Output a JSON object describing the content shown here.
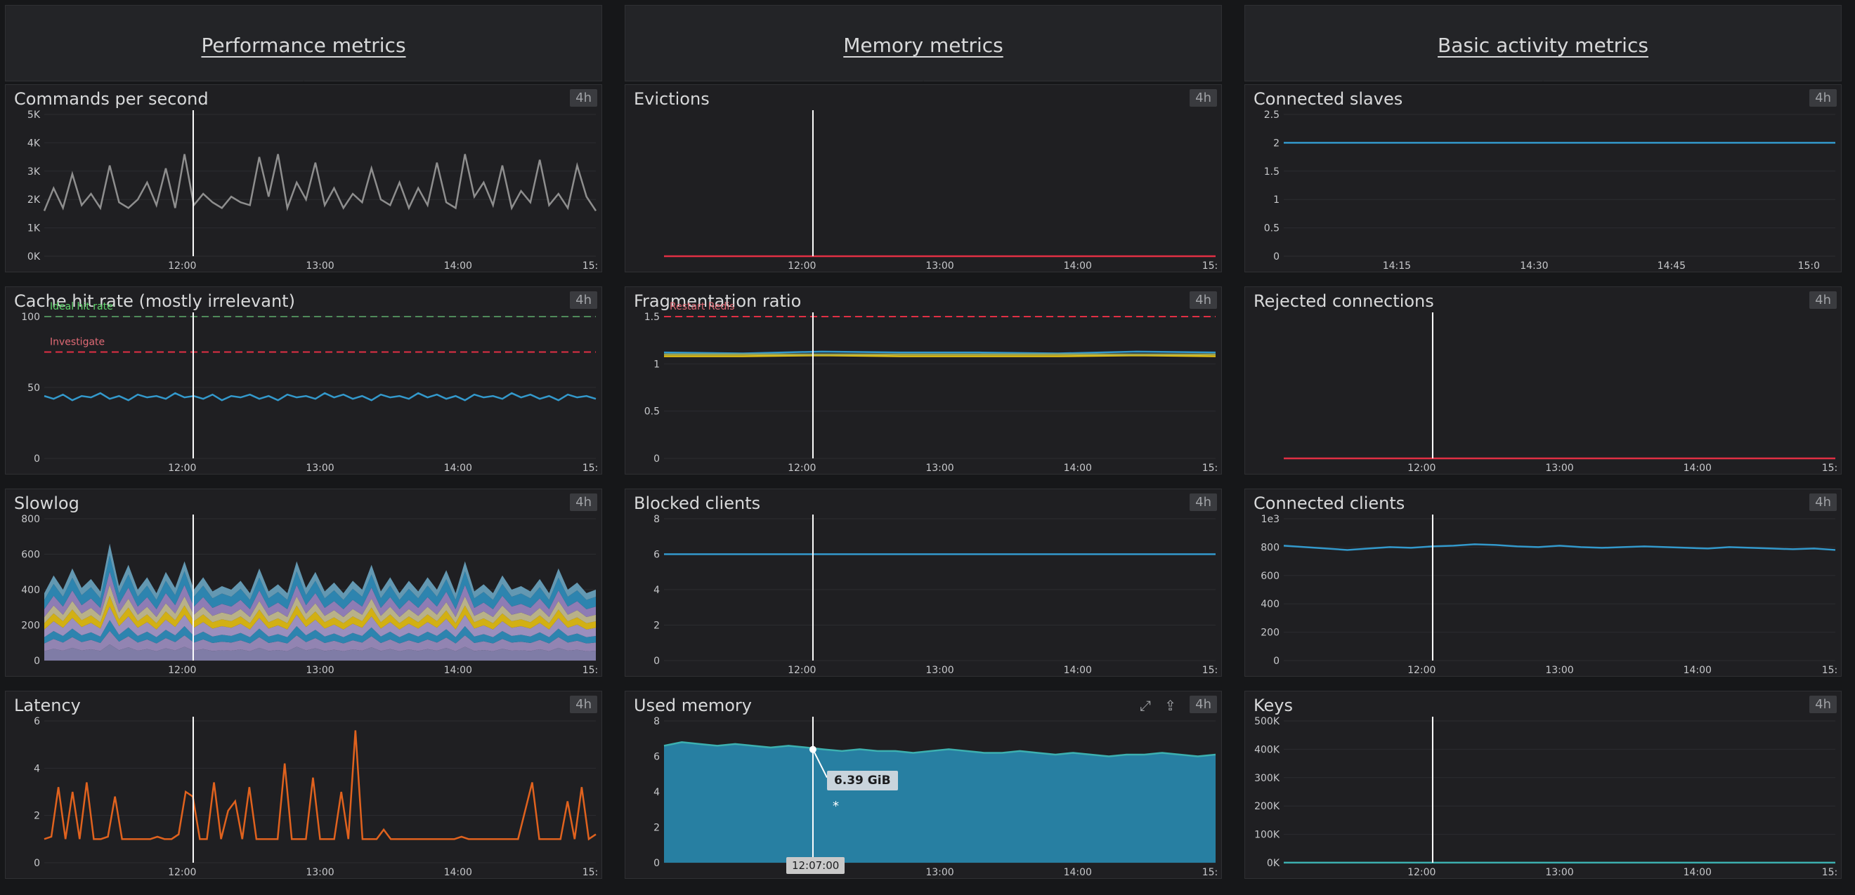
{
  "sections": [
    {
      "title": "Performance metrics"
    },
    {
      "title": "Memory metrics"
    },
    {
      "title": "Basic activity metrics"
    }
  ],
  "colors": {
    "gray_line": "#8e8e8e",
    "blue": "#3399cc",
    "red": "#e02f44",
    "orange": "#e0621e",
    "teal": "#277fa2",
    "purple": "#6c5ea6",
    "green_dash": "#4f8a5a",
    "yellow": "#e5c012"
  },
  "tooltip": {
    "value": "6.39 GiB",
    "marker": "*",
    "time": "12:07:00"
  },
  "panels": [
    {
      "title": "Commands per second",
      "badge": "4h",
      "col": 0,
      "row": 0,
      "chart_data": {
        "type": "line",
        "title": "Commands per second",
        "y_ticks": [
          "0K",
          "1K",
          "2K",
          "3K",
          "4K",
          "5K"
        ],
        "x_ticks": [
          "12:00",
          "13:00",
          "14:00",
          "15:"
        ],
        "series": [
          {
            "color": "gray_line",
            "values": [
              1600,
              2400,
              1700,
              2900,
              1800,
              2200,
              1700,
              3200,
              1900,
              1700,
              2000,
              2600,
              1800,
              3100,
              1700,
              3600,
              1800,
              2200,
              1900,
              1700,
              2100,
              1900,
              1800,
              3500,
              2100,
              3600,
              1700,
              2600,
              2000,
              3300,
              1800,
              2400,
              1700,
              2200,
              1900,
              3100,
              2000,
              1800,
              2600,
              1700,
              2400,
              1800,
              3300,
              1900,
              1700,
              3600,
              2100,
              2600,
              1800,
              3200,
              1700,
              2300,
              1900,
              3400,
              1800,
              2200,
              1700,
              3200,
              2100,
              1600
            ]
          }
        ]
      }
    },
    {
      "title": "Cache hit rate (mostly irrelevant)",
      "badge": "4h",
      "col": 0,
      "row": 1,
      "chart_data": {
        "type": "line",
        "title": "Cache hit rate (mostly irrelevant)",
        "y_ticks": [
          "0",
          "50",
          "100"
        ],
        "x_ticks": [
          "12:00",
          "13:00",
          "14:00",
          "15:"
        ],
        "annotations": [
          {
            "label": "Ideal hit rate",
            "y": 100,
            "color": "green_dash"
          },
          {
            "label": "Investigate",
            "y": 75,
            "color": "red"
          }
        ],
        "series": [
          {
            "color": "blue",
            "values": [
              44,
              42,
              45,
              41,
              44,
              43,
              46,
              42,
              44,
              41,
              45,
              43,
              44,
              42,
              46,
              43,
              44,
              42,
              45,
              41,
              44,
              43,
              45,
              42,
              44,
              41,
              45,
              43,
              44,
              42,
              46,
              43,
              45,
              42,
              44,
              41,
              45,
              43,
              44,
              42,
              46,
              43,
              45,
              42,
              44,
              41,
              45,
              43,
              44,
              42,
              46,
              43,
              45,
              42,
              44,
              41,
              45,
              43,
              44,
              42
            ]
          }
        ]
      }
    },
    {
      "title": "Slowlog",
      "badge": "4h",
      "col": 0,
      "row": 2,
      "chart_data": {
        "type": "area",
        "title": "Slowlog",
        "y_ticks": [
          "0",
          "200",
          "400",
          "600",
          "800"
        ],
        "x_ticks": [
          "12:00",
          "13:00",
          "14:00",
          "15:"
        ],
        "stacked": true,
        "series": [
          {
            "color": "#8a86b5",
            "values": [
              60,
              60,
              60,
              60
            ]
          },
          {
            "color": "#9e8fc2",
            "values": [
              50,
              50,
              50,
              50
            ]
          },
          {
            "color": "#2f8fbf",
            "values": [
              40,
              40,
              40,
              40
            ]
          },
          {
            "color": "#a99bcf",
            "values": [
              50,
              50,
              50,
              50
            ]
          },
          {
            "color": "#e5c012",
            "values": [
              40,
              40,
              40,
              40
            ]
          },
          {
            "color": "#c9c195",
            "values": [
              40,
              40,
              40,
              40
            ]
          },
          {
            "color": "#9a86c4",
            "values": [
              50,
              50,
              50,
              50
            ]
          },
          {
            "color": "#2f8fbf",
            "values": [
              60,
              60,
              60,
              60
            ]
          },
          {
            "color": "#6aa5c2",
            "values": [
              0,
              0,
              0,
              0
            ]
          }
        ],
        "top_values": [
          380,
          480,
          400,
          520,
          410,
          460,
          390,
          660,
          420,
          540,
          400,
          470,
          380,
          500,
          410,
          560,
          400,
          470,
          390,
          420,
          400,
          450,
          380,
          520,
          390,
          430,
          380,
          560,
          410,
          500,
          390,
          440,
          380,
          450,
          400,
          540,
          390,
          470,
          380,
          450,
          390,
          470,
          400,
          510,
          380,
          560,
          390,
          430,
          380,
          480,
          400,
          420,
          390,
          460,
          380,
          520,
          400,
          440,
          380,
          400
        ]
      }
    },
    {
      "title": "Latency",
      "badge": "4h",
      "col": 0,
      "row": 3,
      "chart_data": {
        "type": "line",
        "title": "Latency",
        "y_ticks": [
          "0",
          "2",
          "4",
          "6"
        ],
        "x_ticks": [
          "12:00",
          "13:00",
          "14:00",
          "15:"
        ],
        "series": [
          {
            "color": "orange",
            "values": [
              1,
              1.1,
              3.2,
              1,
              3.0,
              1,
              3.4,
              1,
              1,
              1.1,
              2.8,
              1,
              1,
              1,
              1,
              1,
              1.1,
              1,
              1,
              1.2,
              3.0,
              2.8,
              1,
              1,
              3.4,
              1,
              2.2,
              2.6,
              1,
              3.2,
              1,
              1,
              1,
              1,
              4.2,
              1,
              1,
              1,
              3.6,
              1,
              1,
              1,
              3.0,
              1,
              5.6,
              1,
              1,
              1,
              1.4,
              1,
              1,
              1,
              1,
              1,
              1,
              1,
              1,
              1,
              1,
              1.1,
              1,
              1,
              1,
              1,
              1,
              1,
              1,
              1,
              2.2,
              3.4,
              1,
              1,
              1,
              1,
              2.6,
              1,
              3.2,
              1,
              1.2
            ]
          }
        ]
      }
    },
    {
      "title": "Evictions",
      "badge": "4h",
      "col": 1,
      "row": 0,
      "chart_data": {
        "type": "line",
        "title": "Evictions",
        "y_ticks": [],
        "x_ticks": [
          "12:00",
          "13:00",
          "14:00",
          "15:"
        ],
        "series": [
          {
            "color": "red",
            "values": [
              0,
              0
            ]
          }
        ]
      }
    },
    {
      "title": "Fragmentation ratio",
      "badge": "4h",
      "col": 1,
      "row": 1,
      "chart_data": {
        "type": "line",
        "title": "Fragmentation ratio",
        "y_ticks": [
          "0",
          "0.5",
          "1",
          "1.5"
        ],
        "x_ticks": [
          "12:00",
          "13:00",
          "14:00",
          "15:"
        ],
        "annotations": [
          {
            "label": "Restart Redis",
            "y": 1.5,
            "color": "red"
          }
        ],
        "series": [
          {
            "color": "blue",
            "values": [
              1.12,
              1.11,
              1.13,
              1.12,
              1.12,
              1.11,
              1.13,
              1.12
            ]
          },
          {
            "color": "yellow",
            "values": [
              1.08,
              1.08,
              1.09,
              1.08,
              1.08,
              1.08,
              1.09,
              1.08
            ]
          },
          {
            "color": "#9aa352",
            "values": [
              1.1,
              1.1,
              1.1,
              1.1,
              1.1,
              1.1,
              1.1,
              1.1
            ]
          }
        ]
      }
    },
    {
      "title": "Blocked clients",
      "badge": "4h",
      "col": 1,
      "row": 2,
      "chart_data": {
        "type": "line",
        "title": "Blocked clients",
        "y_ticks": [
          "0",
          "2",
          "4",
          "6",
          "8"
        ],
        "x_ticks": [
          "12:00",
          "13:00",
          "14:00",
          "15:"
        ],
        "series": [
          {
            "color": "blue",
            "values": [
              6,
              6
            ]
          }
        ]
      }
    },
    {
      "title": "Used memory",
      "badge": "4h",
      "col": 1,
      "row": 3,
      "tools": true,
      "chart_data": {
        "type": "area",
        "title": "Used memory",
        "y_ticks": [
          "0",
          "2",
          "4",
          "6",
          "8"
        ],
        "x_ticks": [
          "13:00",
          "14:00",
          "15:"
        ],
        "series": [
          {
            "color": "teal",
            "values": [
              6.6,
              6.8,
              6.7,
              6.6,
              6.7,
              6.6,
              6.5,
              6.6,
              6.5,
              6.39,
              6.3,
              6.4,
              6.3,
              6.3,
              6.2,
              6.3,
              6.4,
              6.3,
              6.2,
              6.2,
              6.3,
              6.2,
              6.1,
              6.2,
              6.1,
              6.0,
              6.1,
              6.1,
              6.2,
              6.1,
              6.0,
              6.1
            ]
          }
        ]
      }
    },
    {
      "title": "Connected slaves",
      "badge": "4h",
      "col": 2,
      "row": 0,
      "chart_data": {
        "type": "line",
        "title": "Connected slaves",
        "y_ticks": [
          "0",
          "0.5",
          "1",
          "1.5",
          "2",
          "2.5"
        ],
        "x_ticks": [
          "14:15",
          "14:30",
          "14:45",
          "15:0"
        ],
        "series": [
          {
            "color": "blue",
            "values": [
              2,
              2
            ]
          }
        ]
      }
    },
    {
      "title": "Rejected connections",
      "badge": "4h",
      "col": 2,
      "row": 1,
      "chart_data": {
        "type": "line",
        "title": "Rejected connections",
        "y_ticks": [],
        "x_ticks": [
          "12:00",
          "13:00",
          "14:00",
          "15:"
        ],
        "series": [
          {
            "color": "red",
            "values": [
              0,
              0
            ]
          }
        ]
      }
    },
    {
      "title": "Connected clients",
      "badge": "4h",
      "col": 2,
      "row": 2,
      "chart_data": {
        "type": "line",
        "title": "Connected clients",
        "y_ticks": [
          "0",
          "200",
          "400",
          "600",
          "800",
          "1e3"
        ],
        "x_ticks": [
          "12:00",
          "13:00",
          "14:00",
          "15:"
        ],
        "series": [
          {
            "color": "blue",
            "values": [
              810,
              800,
              790,
              780,
              790,
              800,
              795,
              805,
              810,
              820,
              815,
              805,
              800,
              810,
              800,
              795,
              800,
              805,
              800,
              795,
              790,
              800,
              795,
              790,
              785,
              790,
              780
            ]
          }
        ]
      }
    },
    {
      "title": "Keys",
      "badge": "4h",
      "col": 2,
      "row": 3,
      "chart_data": {
        "type": "area",
        "title": "Keys",
        "y_ticks": [
          "0K",
          "100K",
          "200K",
          "300K",
          "400K",
          "500K"
        ],
        "x_ticks": [
          "12:00",
          "13:00",
          "14:00",
          "15:"
        ],
        "series": [
          {
            "color": "purple",
            "values": [
              400,
              402,
              401,
              403,
              400,
              398,
              396,
              392,
              388,
              384,
              380,
              376,
              372
            ]
          }
        ]
      }
    }
  ]
}
